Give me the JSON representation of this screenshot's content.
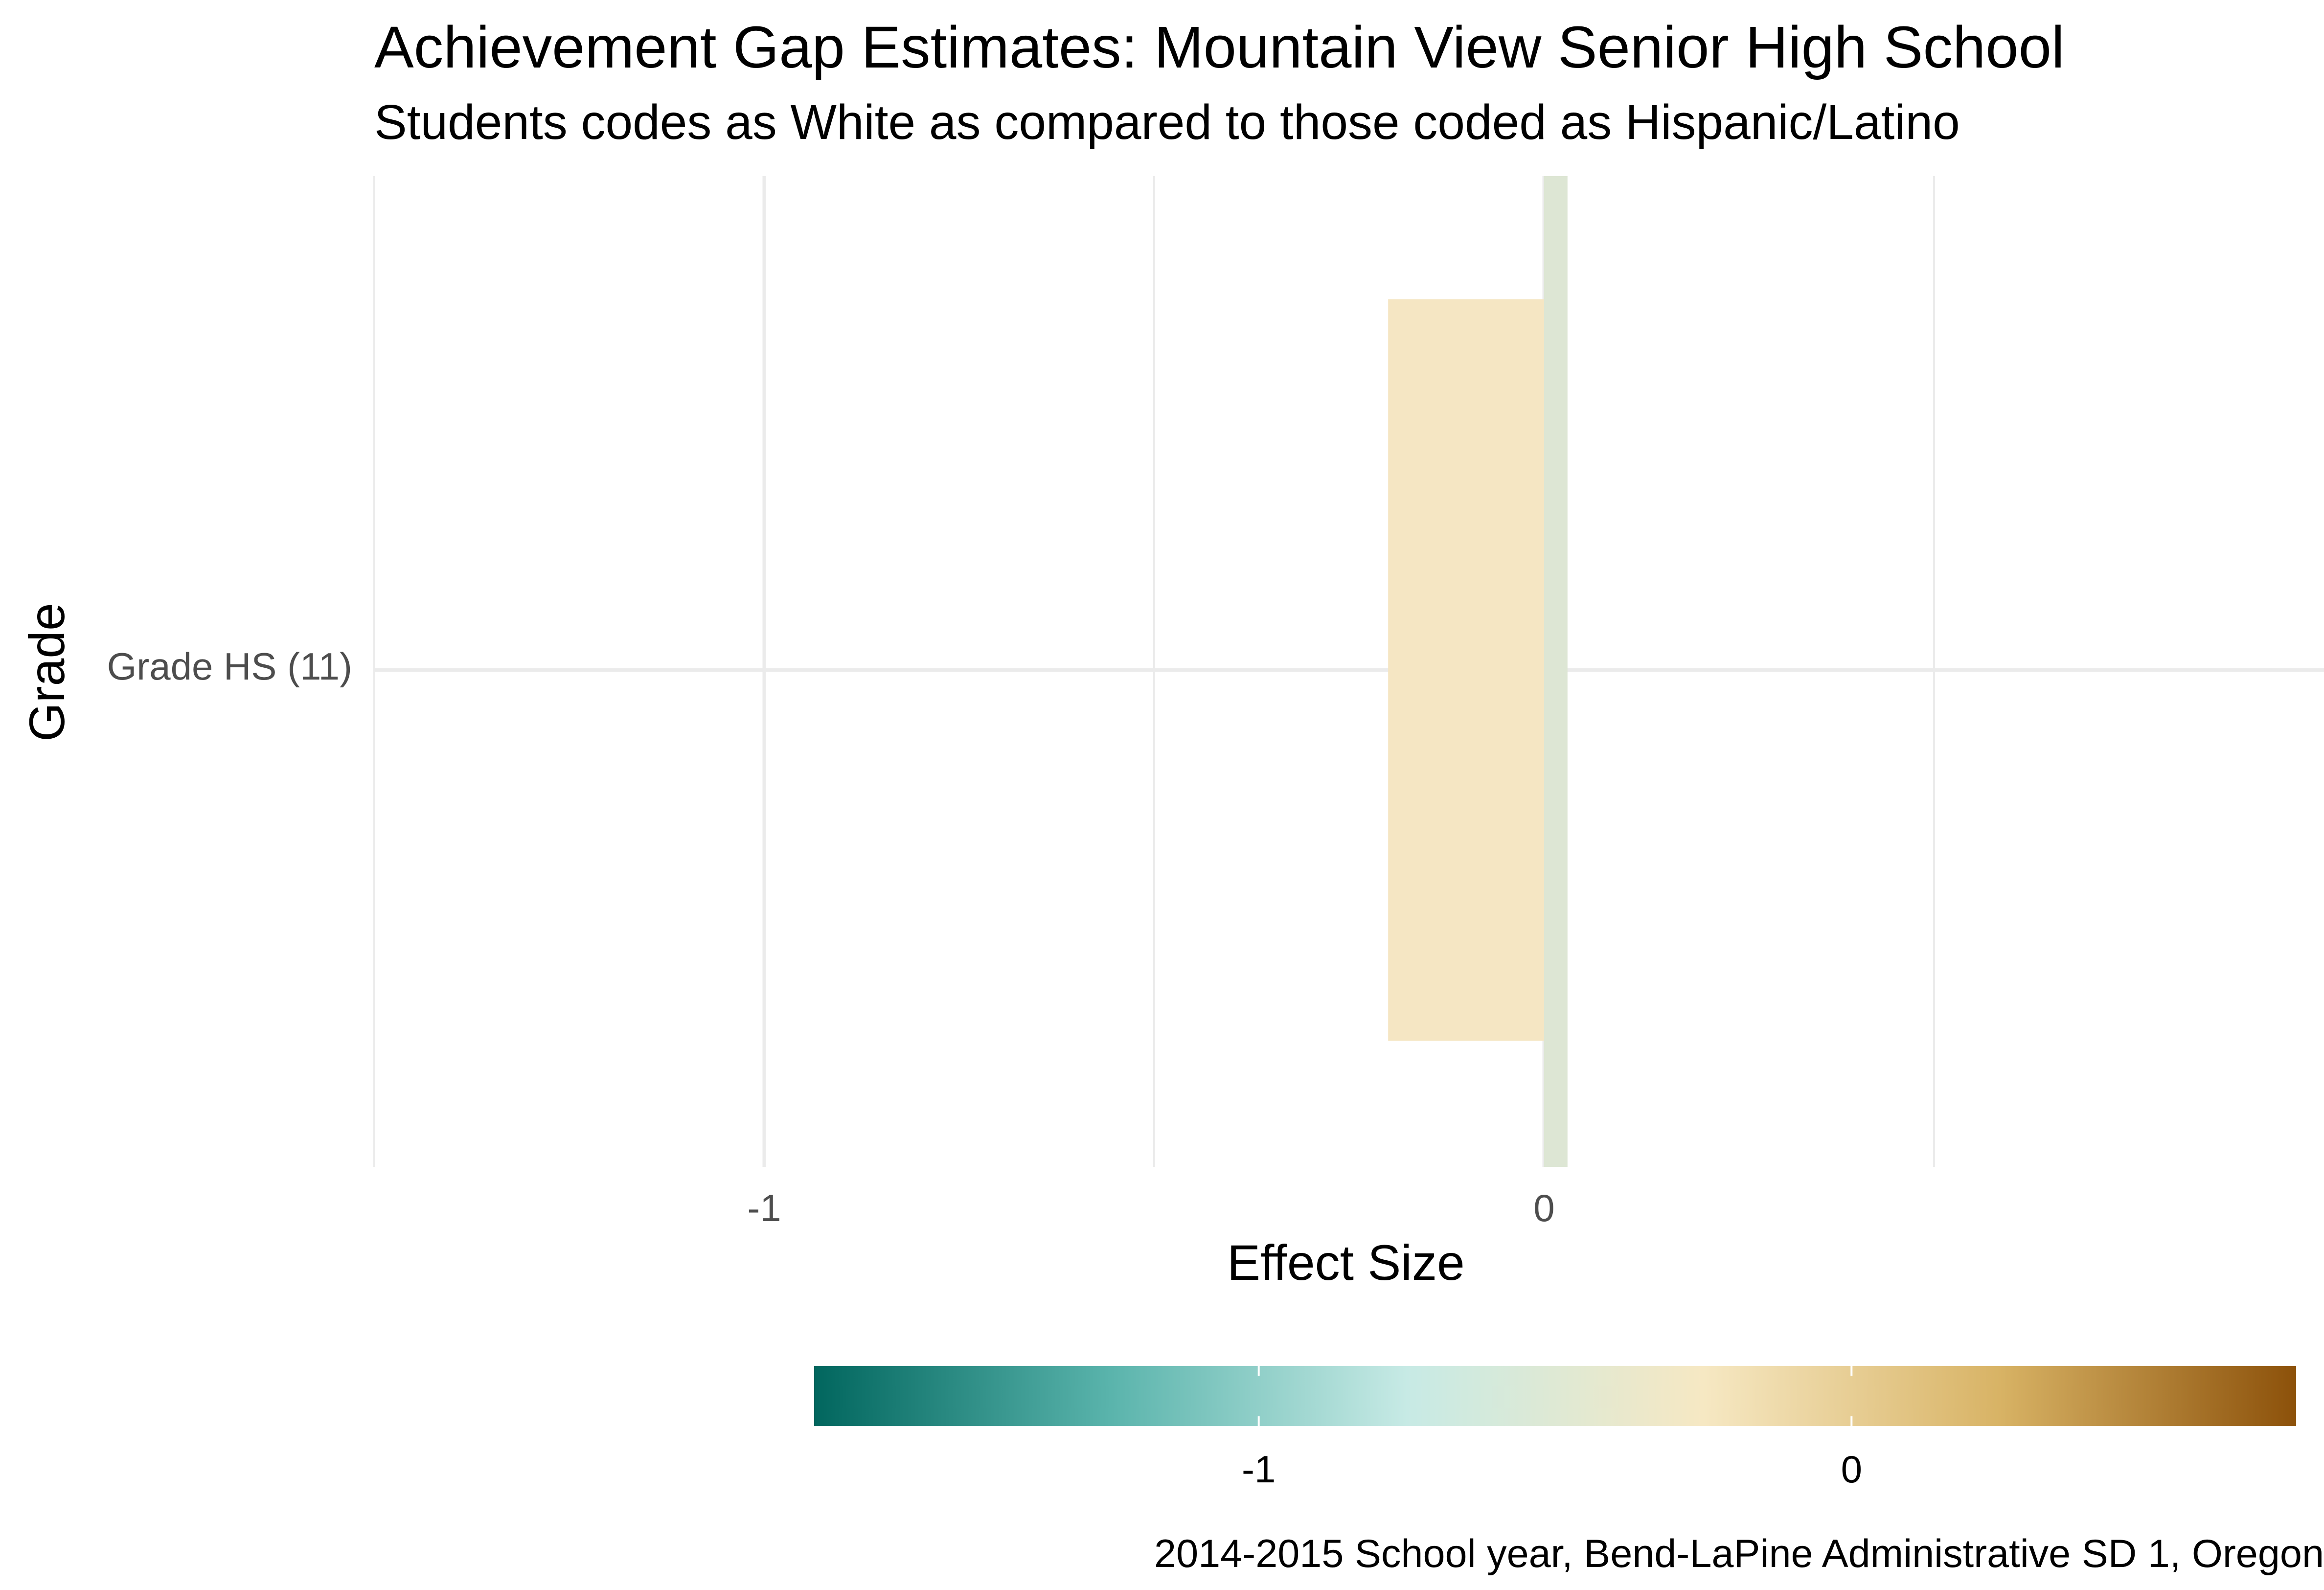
{
  "chart_data": {
    "type": "bar",
    "orientation": "horizontal",
    "title": "Achievement Gap Estimates: Mountain View Senior High School",
    "subtitle": "Students codes as White as compared to those coded as Hispanic/Latino",
    "caption": "2014-2015 School year, Bend-LaPine Administrative SD 1, Oregon",
    "xlabel": "Effect Size",
    "ylabel": "Grade",
    "categories": [
      "Grade HS (11)"
    ],
    "bars": [
      {
        "category": "Grade HS (11)",
        "value": -0.2,
        "fill": "#F5E6C3"
      }
    ],
    "reference_bar": {
      "category": "Grade HS (11)",
      "value": 0.03,
      "fill": "#DDE6D4"
    },
    "xlim": [
      -1.5,
      1.0
    ],
    "x_ticks": [
      -1,
      0
    ],
    "x_minor_gridlines": [
      -1.5,
      -0.5,
      0.5
    ],
    "grid": true,
    "legend": {
      "type": "colorbar",
      "position": "bottom",
      "range": [
        -1.75,
        0.75
      ],
      "ticks": [
        -1,
        0
      ],
      "colors": [
        "#01665E",
        "#5AB4AC",
        "#C7EAE5",
        "#F6E8C3",
        "#D8B365",
        "#8C510A"
      ]
    }
  }
}
